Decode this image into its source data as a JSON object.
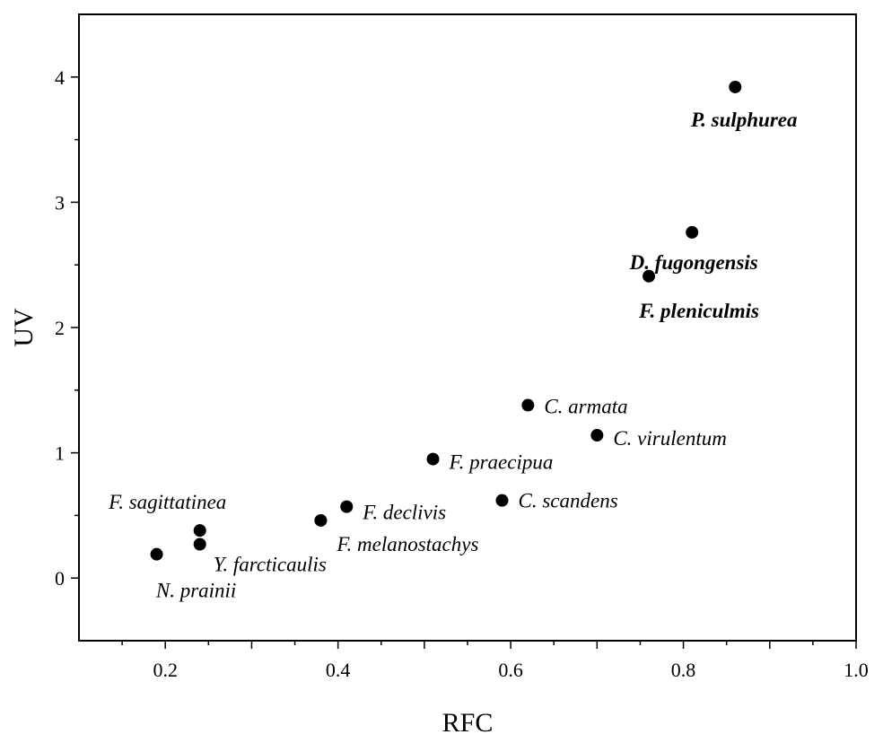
{
  "chart_data": {
    "type": "scatter",
    "xlabel": "RFC",
    "ylabel": "UV",
    "xlim": [
      0.1,
      1.0
    ],
    "ylim": [
      -0.5,
      4.5
    ],
    "xticks": [
      "0.2",
      "0.4",
      "0.6",
      "0.8",
      "1.0"
    ],
    "yticks": [
      "0",
      "1",
      "2",
      "3",
      "4"
    ],
    "grid": false,
    "points": [
      {
        "label": "P. sulphurea",
        "x": 0.86,
        "y": 3.92,
        "bold": true
      },
      {
        "label": "D. fugongensis",
        "x": 0.81,
        "y": 2.76,
        "bold": true
      },
      {
        "label": "F. pleniculmis",
        "x": 0.76,
        "y": 2.41,
        "bold": true
      },
      {
        "label": "C. armata",
        "x": 0.62,
        "y": 1.38,
        "bold": false
      },
      {
        "label": "C. virulentum",
        "x": 0.7,
        "y": 1.14,
        "bold": false
      },
      {
        "label": "F. praecipua",
        "x": 0.51,
        "y": 0.95,
        "bold": false
      },
      {
        "label": "C. scandens",
        "x": 0.59,
        "y": 0.62,
        "bold": false
      },
      {
        "label": "F. declivis",
        "x": 0.41,
        "y": 0.57,
        "bold": false
      },
      {
        "label": "F. melanostachys",
        "x": 0.38,
        "y": 0.46,
        "bold": false
      },
      {
        "label": "F. sagittatinea",
        "x": 0.24,
        "y": 0.38,
        "bold": false
      },
      {
        "label": "Y. farcticaulis",
        "x": 0.24,
        "y": 0.27,
        "bold": false
      },
      {
        "label": "N. prainii",
        "x": 0.19,
        "y": 0.19,
        "bold": false
      }
    ]
  }
}
